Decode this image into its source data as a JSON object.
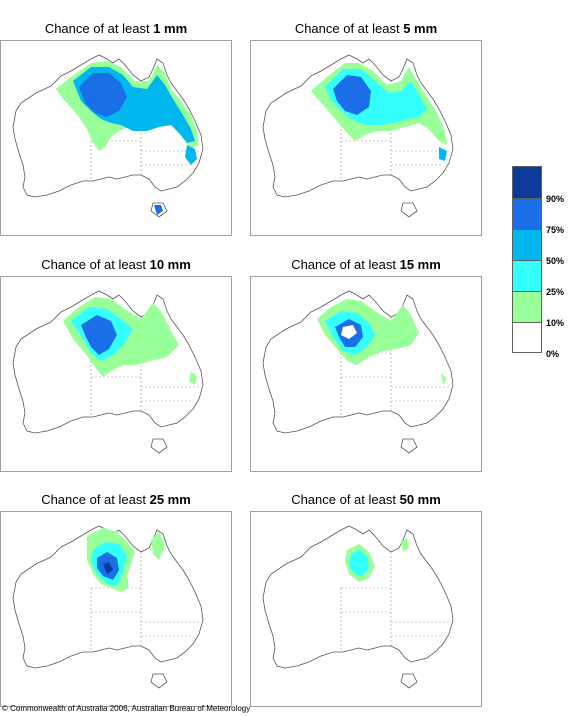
{
  "panels": [
    {
      "prefix": "Chance of at least ",
      "amount": "1 mm"
    },
    {
      "prefix": "Chance of at least ",
      "amount": "5 mm"
    },
    {
      "prefix": "Chance of at least ",
      "amount": "10 mm"
    },
    {
      "prefix": "Chance of at least ",
      "amount": "15 mm"
    },
    {
      "prefix": "Chance of at least ",
      "amount": "25 mm"
    },
    {
      "prefix": "Chance of at least ",
      "amount": "50 mm"
    }
  ],
  "legend": {
    "classes": [
      {
        "label": "90%",
        "color": "#0a3a9a"
      },
      {
        "label": "75%",
        "color": "#1a6fe8"
      },
      {
        "label": "50%",
        "color": "#00b8ee"
      },
      {
        "label": "25%",
        "color": "#33ffff"
      },
      {
        "label": "10%",
        "color": "#99ff99"
      },
      {
        "label": "0%",
        "color": "#ffffff"
      }
    ]
  },
  "copyright": "© Commonwealth of Australia 2006, Australian Bureau of Meteorology"
}
